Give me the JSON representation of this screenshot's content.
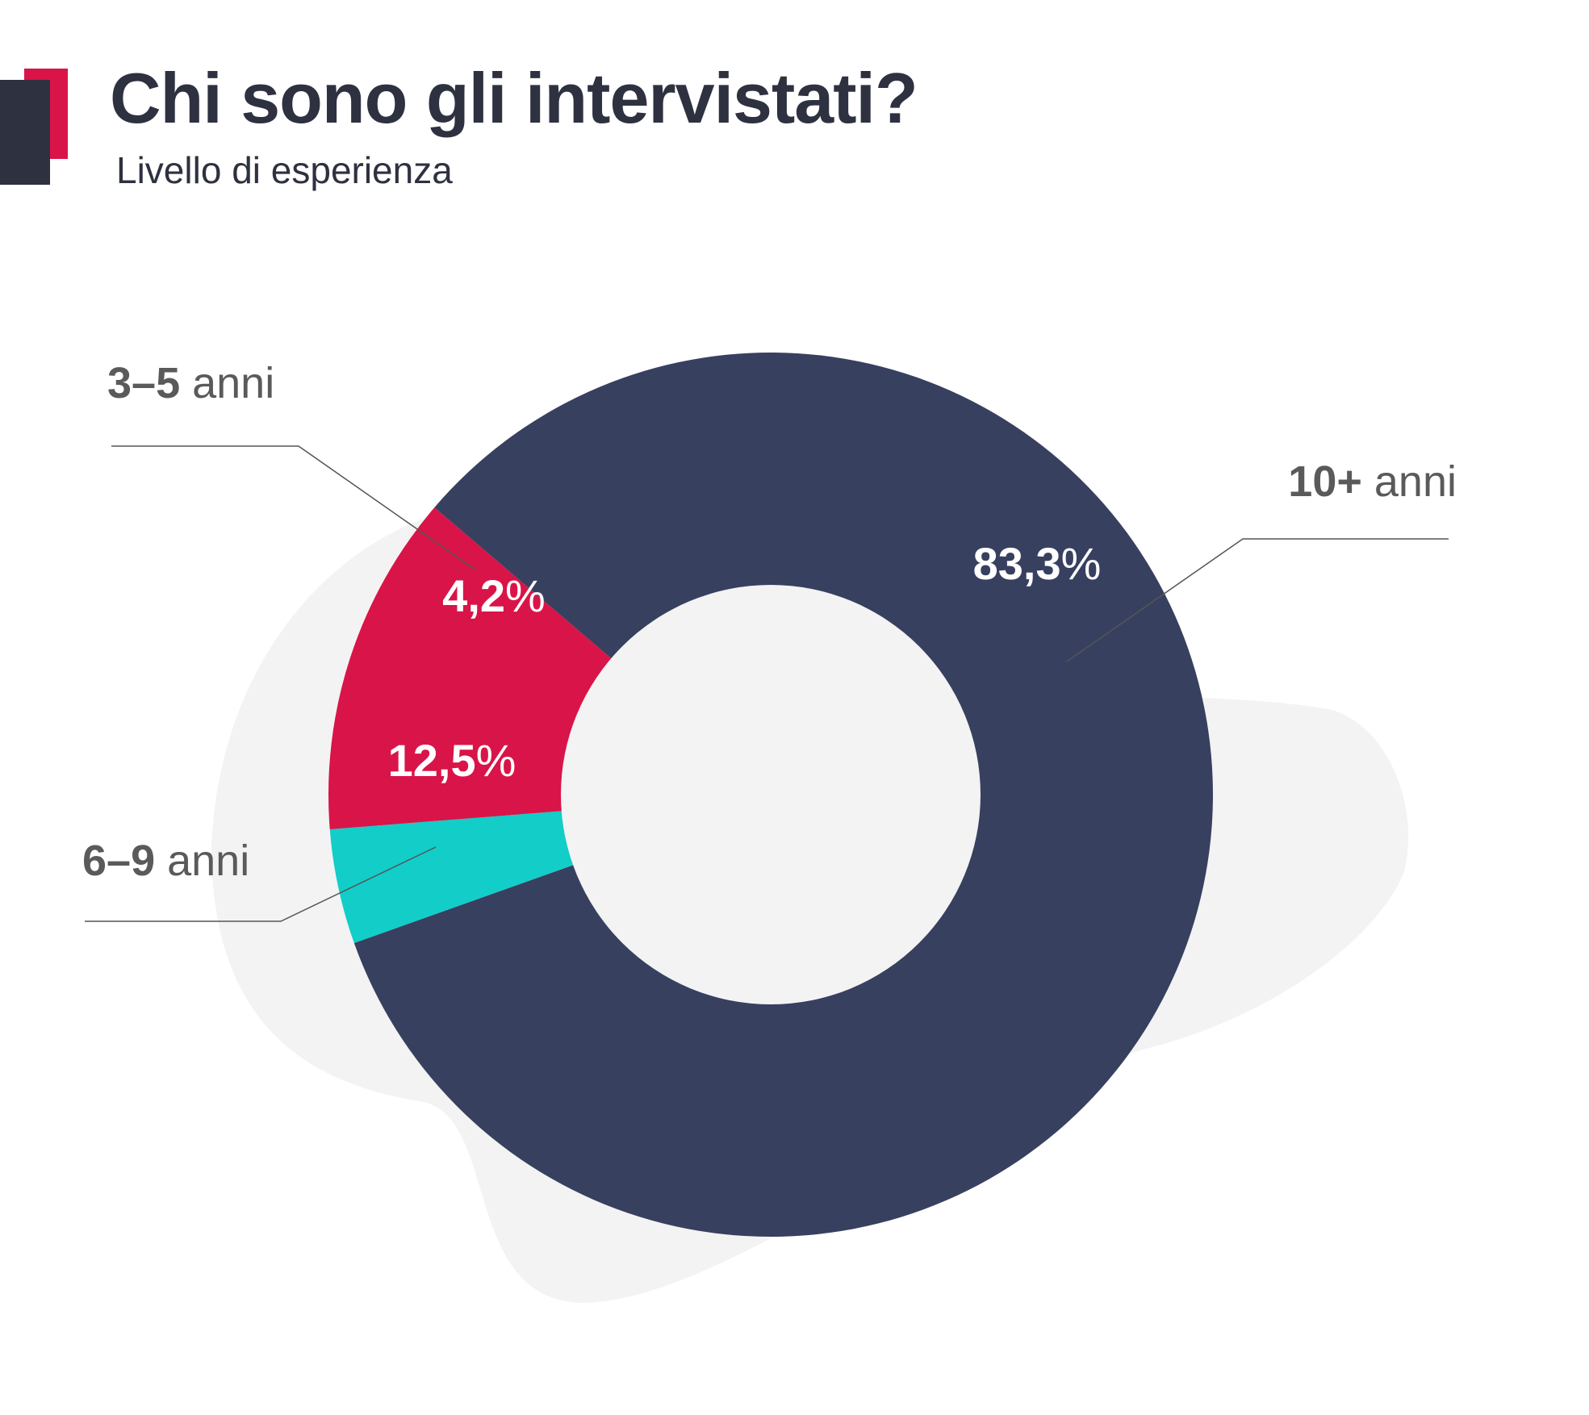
{
  "header": {
    "title": "Chi sono gli intervistati?",
    "subtitle": "Livello di esperienza"
  },
  "chart_data": {
    "type": "pie",
    "variant": "donut",
    "title": "Chi sono gli intervistati?",
    "subtitle": "Livello di esperienza",
    "unit": "%",
    "slices": [
      {
        "range": "10+",
        "unit_word": "anni",
        "value": 83.3,
        "value_text": "83,3",
        "percent_sign": "%",
        "color": "#384060"
      },
      {
        "range": "3–5",
        "unit_word": "anni",
        "value": 4.2,
        "value_text": "4,2",
        "percent_sign": "%",
        "color": "#12cdc8"
      },
      {
        "range": "6–9",
        "unit_word": "anni",
        "value": 12.5,
        "value_text": "12,5",
        "percent_sign": "%",
        "color": "#d91448"
      }
    ]
  },
  "colors": {
    "title_text": "#2e3140",
    "label_text": "#5a5a5a",
    "leader_line": "#555555",
    "blob": "#f3f3f3",
    "hole": "#f3f3f3",
    "logo_red": "#d91448",
    "logo_dark": "#2e3140"
  }
}
